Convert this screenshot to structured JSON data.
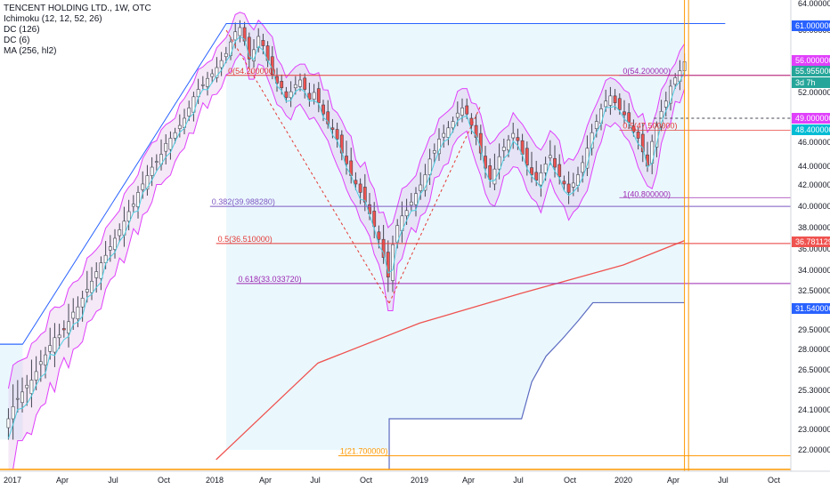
{
  "legend": {
    "title": "TENCENT HOLDING LTD., 1W, OTC",
    "ind1": "Ichimoku (12, 12, 52, 26)",
    "ind2": "DC (126)",
    "ind3": "DC (6)",
    "ind4": "MA (256, hl2)"
  },
  "colors": {
    "candle_up": "#26a69a",
    "candle_down": "#ef5350",
    "candle_dark": "#434651",
    "ichimoku_cloud": "#e1f5fe",
    "dc126": "#2962ff",
    "dc6": "#e040fb",
    "ma": "#ef5350",
    "tenkan": "#4dd0e1",
    "fib_purple": "#9c27b0",
    "fib_red": "#e53935",
    "vline": "#ff9800"
  },
  "chart_data": {
    "type": "candlestick",
    "symbol": "TENCENT HOLDING LTD., 1W, OTC",
    "x_ticks": [
      "2017",
      "Apr",
      "Jul",
      "Oct",
      "2018",
      "Apr",
      "Jul",
      "Oct",
      "2019",
      "Apr",
      "Jul",
      "Oct",
      "2020",
      "Apr",
      "Jul",
      "Oct"
    ],
    "y_ticks": [
      "64.000000",
      "60.000000",
      "56.000000",
      "52.000000",
      "49.000000",
      "46.000000",
      "44.000000",
      "42.000000",
      "40.000000",
      "38.000000",
      "36.000000",
      "34.000000",
      "32.500000",
      "31.000000",
      "29.500000",
      "28.000000",
      "26.500000",
      "25.300000",
      "24.100000",
      "23.000000",
      "22.000000"
    ],
    "ylim": [
      22.0,
      64.0
    ],
    "price_labels": [
      {
        "value": "61.000000",
        "color": "#2962ff"
      },
      {
        "value": "56.000000",
        "color": "#e040fb"
      },
      {
        "value": "55.955000",
        "color": "#26a69a"
      },
      {
        "value": "3d 7h",
        "color": "#26a69a"
      },
      {
        "value": "49.000000",
        "color": "#e040fb"
      },
      {
        "value": "48.400000",
        "color": "#00bcd4"
      },
      {
        "value": "36.781129",
        "color": "#ef5350"
      },
      {
        "value": "31.540000",
        "color": "#2962ff"
      }
    ],
    "fib_levels": [
      {
        "label": "0(54.200000)",
        "ratio": 0,
        "price": 54.2
      },
      {
        "label": "0.382(39.988280)",
        "ratio": 0.382,
        "price": 39.98828
      },
      {
        "label": "0.5(36.510000)",
        "ratio": 0.5,
        "price": 36.51
      },
      {
        "label": "0.618(33.033720)",
        "ratio": 0.618,
        "price": 33.03372
      },
      {
        "label": "1(21.700000)",
        "ratio": 1,
        "price": 21.7
      }
    ],
    "fib2_levels": [
      {
        "label": "0(54.200000)",
        "price": 54.2
      },
      {
        "label": "0.5(47.500000)",
        "price": 47.5
      },
      {
        "label": "1(40.800000)",
        "price": 40.8
      }
    ],
    "series": [
      {
        "name": "DC (126)",
        "type": "step",
        "points": [
          [
            2016.9,
            28.4
          ],
          [
            2017.05,
            28.4
          ],
          [
            2018.05,
            61.0
          ],
          [
            2019.3,
            61.0
          ],
          [
            2019.3,
            61.0
          ],
          [
            2020.5,
            61.0
          ]
        ]
      },
      {
        "name": "MA (256, hl2)",
        "type": "line",
        "points": [
          [
            2018.0,
            21.5
          ],
          [
            2018.5,
            27.0
          ],
          [
            2019.0,
            30.0
          ],
          [
            2019.5,
            32.3
          ],
          [
            2020.0,
            34.5
          ],
          [
            2020.3,
            36.78
          ]
        ]
      },
      {
        "name": "Ichimoku lower",
        "type": "step",
        "points": [
          [
            2018.85,
            21.0
          ],
          [
            2018.85,
            23.6
          ],
          [
            2019.5,
            23.6
          ],
          [
            2019.55,
            25.8
          ],
          [
            2019.62,
            27.5
          ],
          [
            2019.7,
            28.8
          ],
          [
            2019.78,
            30.2
          ],
          [
            2019.85,
            31.54
          ],
          [
            2020.3,
            31.54
          ]
        ]
      },
      {
        "name": "DC (6)",
        "type": "band"
      }
    ],
    "closes": [
      23.6,
      24.3,
      24.8,
      25.2,
      25.6,
      25.9,
      26.4,
      27.1,
      27.6,
      28.3,
      28.9,
      29.1,
      29.5,
      30.1,
      30.8,
      31.2,
      31.9,
      32.6,
      33.2,
      33.9,
      34.7,
      35.4,
      36.2,
      37.0,
      37.8,
      38.6,
      39.5,
      40.2,
      41.3,
      42.1,
      43.0,
      43.9,
      44.4,
      45.0,
      45.9,
      46.5,
      47.2,
      48.1,
      49.0,
      50.2,
      51.5,
      52.4,
      53.0,
      53.8,
      54.4,
      55.2,
      56.1,
      57.0,
      58.5,
      59.8,
      60.4,
      58.6,
      56.3,
      57.5,
      59.2,
      58.0,
      56.1,
      54.3,
      53.2,
      52.6,
      51.4,
      52.1,
      53.0,
      53.6,
      52.4,
      51.2,
      52.0,
      50.8,
      49.5,
      48.3,
      47.6,
      46.4,
      45.1,
      44.2,
      43.0,
      42.1,
      41.3,
      40.4,
      39.3,
      38.1,
      36.9,
      35.2,
      33.5,
      36.4,
      38.2,
      39.1,
      39.6,
      40.4,
      41.2,
      42.0,
      43.1,
      44.6,
      45.3,
      46.4,
      47.1,
      47.8,
      48.6,
      49.6,
      50.2,
      49.5,
      48.1,
      46.6,
      45.1,
      43.8,
      42.6,
      43.7,
      44.8,
      45.6,
      46.3,
      47.1,
      46.2,
      45.0,
      44.1,
      43.1,
      42.5,
      43.3,
      44.2,
      44.9,
      43.9,
      42.9,
      42.1,
      41.3,
      42.2,
      43.1,
      44.3,
      45.5,
      47.2,
      48.6,
      50.1,
      51.0,
      51.6,
      50.8,
      50.0,
      49.4,
      48.5,
      47.3,
      46.5,
      45.2,
      44.0,
      46.1,
      48.0,
      49.8,
      51.0,
      52.8,
      53.9,
      54.8,
      55.95
    ]
  }
}
